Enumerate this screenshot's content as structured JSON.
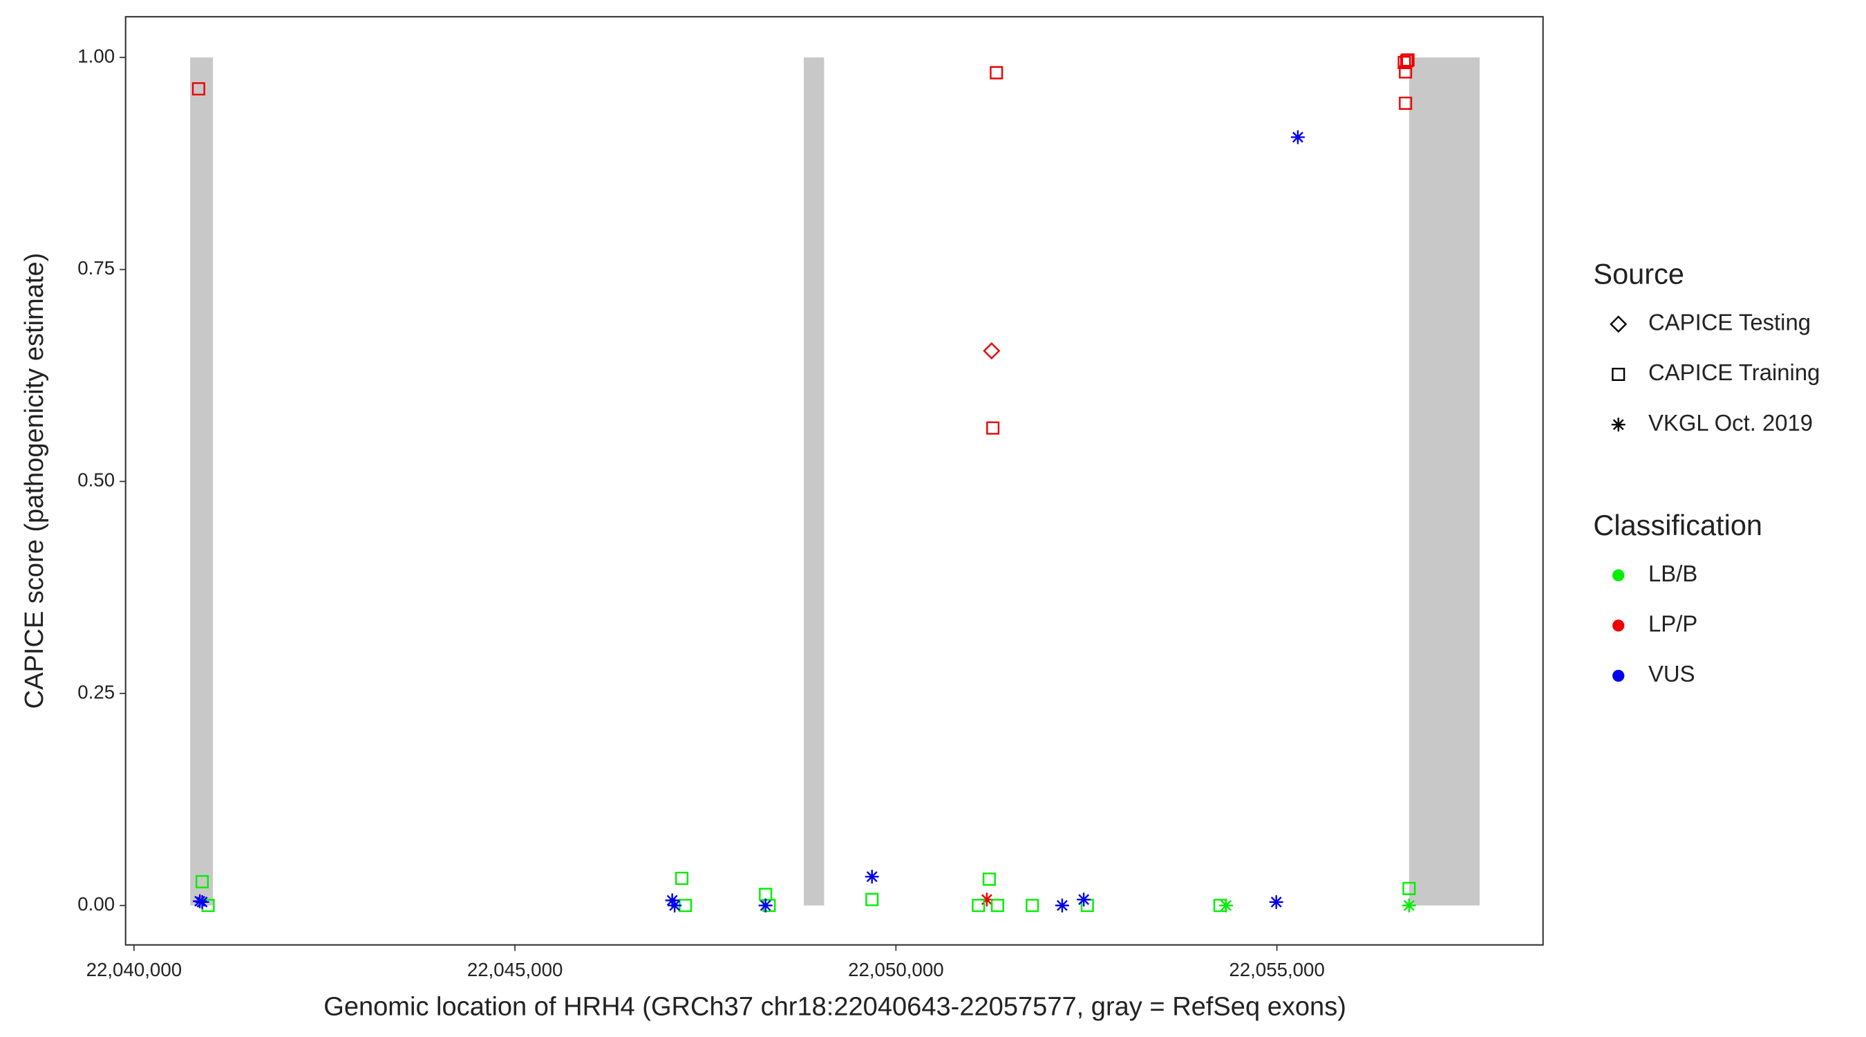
{
  "chart_data": {
    "type": "scatter",
    "x_label": "Genomic location of HRH4 (GRCh37 chr18:22040643-22057577, gray = RefSeq exons)",
    "y_label": "CAPICE score (pathogenicity estimate)",
    "xlim": [
      22039890,
      22058493
    ],
    "ylim": [
      -0.0465,
      1.048
    ],
    "xticks": [
      {
        "value": 22040000,
        "label": "22,040,000"
      },
      {
        "value": 22045000,
        "label": "22,045,000"
      },
      {
        "value": 22050000,
        "label": "22,050,000"
      },
      {
        "value": 22055000,
        "label": "22,055,000"
      }
    ],
    "yticks": [
      {
        "value": 0,
        "label": "0.00"
      },
      {
        "value": 0.25,
        "label": "0.25"
      },
      {
        "value": 0.5,
        "label": "0.50"
      },
      {
        "value": 0.75,
        "label": "0.75"
      },
      {
        "value": 1,
        "label": "1.00"
      }
    ],
    "exon_color": "#c8c8c8",
    "exons": [
      {
        "start": 22040738,
        "end": 22041036,
        "ymin": 0,
        "ymax": 1
      },
      {
        "start": 22048791,
        "end": 22049058,
        "ymin": 0,
        "ymax": 1
      },
      {
        "start": 22056735,
        "end": 22057661,
        "ymin": 0,
        "ymax": 1
      }
    ],
    "legend_source": {
      "title": "Source",
      "entries": [
        {
          "label": "CAPICE Testing",
          "shape": "diamond"
        },
        {
          "label": "CAPICE Training",
          "shape": "square"
        },
        {
          "label": "VKGL Oct. 2019",
          "shape": "star"
        }
      ]
    },
    "legend_classification": {
      "title": "Classification",
      "entries": [
        {
          "label": "LB/B",
          "color": "#00ee00"
        },
        {
          "label": "LP/P",
          "color": "#ee0000"
        },
        {
          "label": "VUS",
          "color": "#0000ee"
        }
      ]
    },
    "series": [
      {
        "shape": "square",
        "color": "#ee0000",
        "x": [
          22040848,
          22051319,
          22051272,
          22056688,
          22056688,
          22056672,
          22056720,
          22056704
        ],
        "values": [
          0.963,
          0.982,
          0.563,
          0.946,
          0.983,
          0.994,
          0.997,
          0.996
        ]
      },
      {
        "shape": "diamond",
        "color": "#ee0000",
        "x": [
          22051256
        ],
        "values": [
          0.654
        ]
      },
      {
        "shape": "star",
        "color": "#ee0000",
        "x": [
          22051193
        ],
        "values": [
          0.007
        ]
      },
      {
        "shape": "square",
        "color": "#00ee00",
        "x": [
          22040895,
          22040973,
          22047190,
          22047237,
          22048289,
          22048336,
          22049686,
          22051225,
          22051083,
          22051334,
          22051790,
          22052512,
          22054254,
          22056735
        ],
        "values": [
          0.028,
          0,
          0.032,
          0,
          0.013,
          0,
          0.007,
          0.031,
          0,
          0,
          0,
          0,
          0,
          0.02
        ]
      },
      {
        "shape": "star",
        "color": "#00ee00",
        "x": [
          22054333,
          22056735
        ],
        "values": [
          0,
          0
        ]
      },
      {
        "shape": "star",
        "color": "#0000ee",
        "x": [
          22040895,
          22040864,
          22047064,
          22047096,
          22048289,
          22049686,
          22052182,
          22052465,
          22054992,
          22055275
        ],
        "values": [
          0.004,
          0.005,
          0.006,
          0,
          0,
          0.034,
          0,
          0.007,
          0.004,
          0.906
        ]
      }
    ]
  }
}
